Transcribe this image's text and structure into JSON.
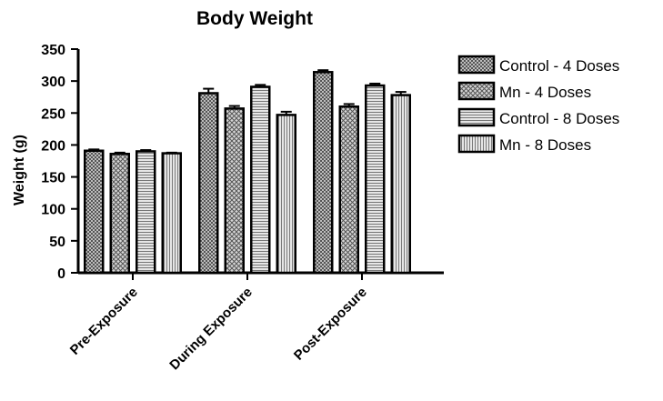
{
  "chart_data": {
    "type": "bar",
    "title": "Body Weight",
    "xlabel": "",
    "ylabel": "Weight (g)",
    "ylim": [
      0,
      350
    ],
    "yticks": [
      0,
      50,
      100,
      150,
      200,
      250,
      300,
      350
    ],
    "grid": false,
    "legend_position": "right",
    "categories": [
      "Pre-Exposure",
      "During Exposure",
      "Post-Exposure"
    ],
    "series": [
      {
        "name": "Control - 4 Doses",
        "values": [
          191,
          281,
          314
        ],
        "errors": [
          2,
          7,
          3
        ],
        "pattern": "dense-check",
        "color": "#6e6e6e"
      },
      {
        "name": "Mn - 4 Doses",
        "values": [
          186,
          257,
          260
        ],
        "errors": [
          2,
          4,
          4
        ],
        "pattern": "crosshatch",
        "color": "#8a8a8a"
      },
      {
        "name": "Control - 8 Doses",
        "values": [
          190,
          291,
          293
        ],
        "errors": [
          2,
          3,
          3
        ],
        "pattern": "horizontal",
        "color": "#9a9a9a"
      },
      {
        "name": "Mn - 8 Doses",
        "values": [
          187,
          247,
          278
        ],
        "errors": [
          1,
          5,
          5
        ],
        "pattern": "vertical",
        "color": "#9a9a9a"
      }
    ]
  }
}
